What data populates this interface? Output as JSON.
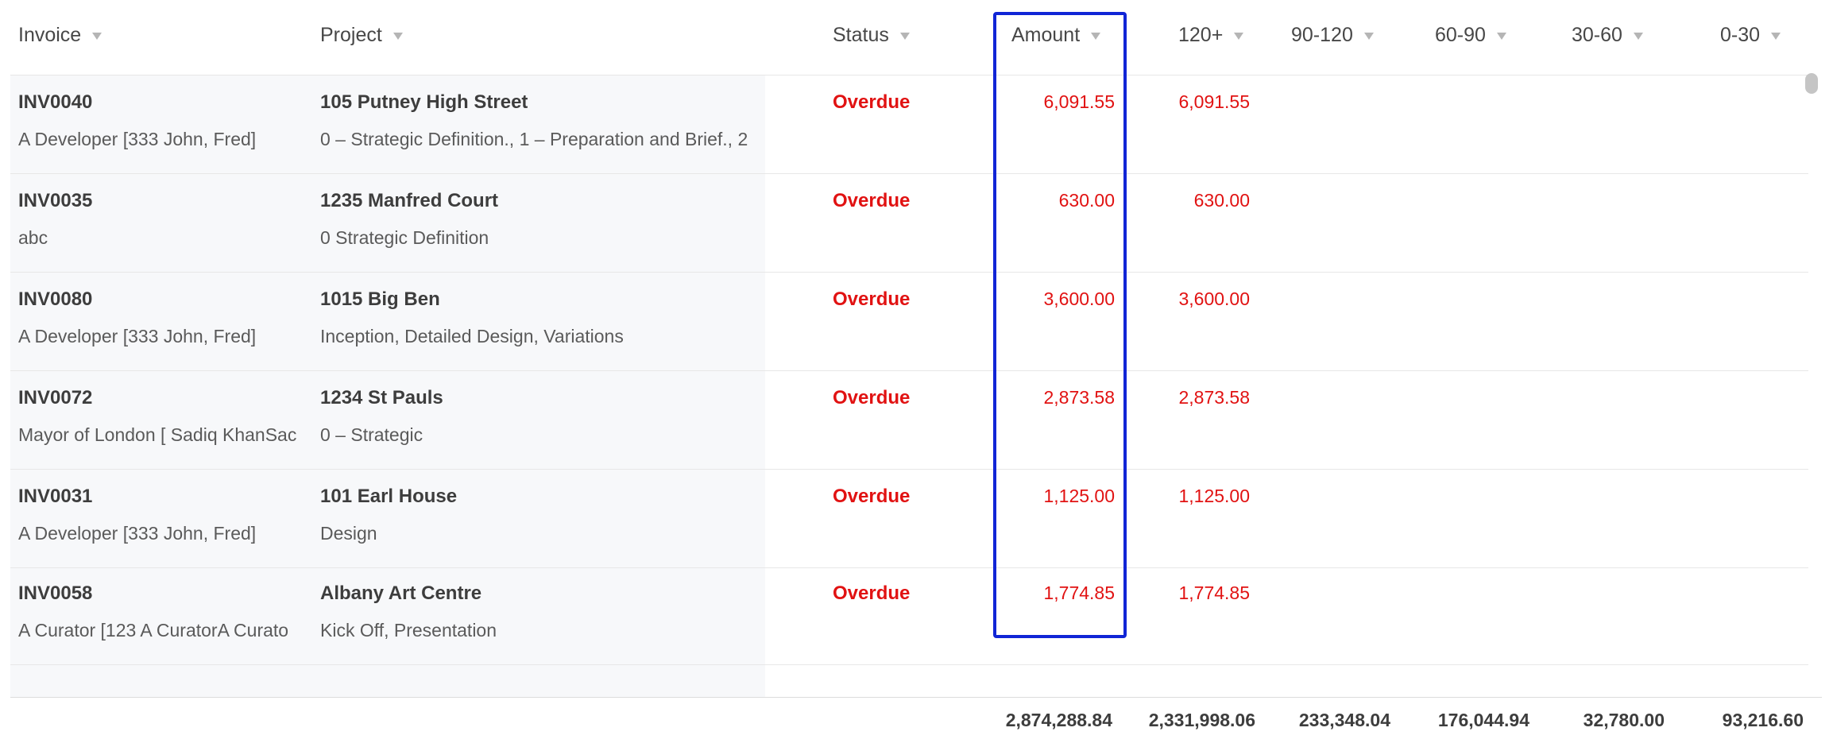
{
  "columns": {
    "invoice": "Invoice",
    "project": "Project",
    "status": "Status",
    "amount": "Amount",
    "b120": "120+",
    "b90_120": "90-120",
    "b60_90": "60-90",
    "b30_60": "30-60",
    "b0_30": "0-30"
  },
  "rows": [
    {
      "invoice": "INV0040",
      "client": "A Developer [333 John, Fred]",
      "project": "105 Putney High Street",
      "stages": "0 – Strategic Definition., 1 – Preparation and Brief., 2",
      "status": "Overdue",
      "amount": "6,091.55",
      "b120": "6,091.55"
    },
    {
      "invoice": "INV0035",
      "client": "abc",
      "project": "1235 Manfred Court",
      "stages": "0 Strategic Definition",
      "status": "Overdue",
      "amount": "630.00",
      "b120": "630.00"
    },
    {
      "invoice": "INV0080",
      "client": "A Developer [333 John, Fred]",
      "project": "1015 Big Ben",
      "stages": "Inception, Detailed Design, Variations",
      "status": "Overdue",
      "amount": "3,600.00",
      "b120": "3,600.00"
    },
    {
      "invoice": "INV0072",
      "client": "Mayor of London [ Sadiq KhanSac",
      "project": "1234 St Pauls",
      "stages": "0 – Strategic",
      "status": "Overdue",
      "amount": "2,873.58",
      "b120": "2,873.58"
    },
    {
      "invoice": "INV0031",
      "client": "A Developer [333 John, Fred]",
      "project": "101 Earl House",
      "stages": "Design",
      "status": "Overdue",
      "amount": "1,125.00",
      "b120": "1,125.00"
    },
    {
      "invoice": "INV0058",
      "client": "A Curator [123 A CuratorA Curato",
      "project": "Albany Art Centre",
      "stages": "Kick Off, Presentation",
      "status": "Overdue",
      "amount": "1,774.85",
      "b120": "1,774.85"
    }
  ],
  "totals": {
    "amount": "2,874,288.84",
    "b120": "2,331,998.06",
    "b90_120": "233,348.04",
    "b60_90": "176,044.94",
    "b30_60": "32,780.00",
    "b0_30": "93,216.60"
  },
  "colors": {
    "overdue": "#e11212",
    "selection": "#1025d6"
  }
}
